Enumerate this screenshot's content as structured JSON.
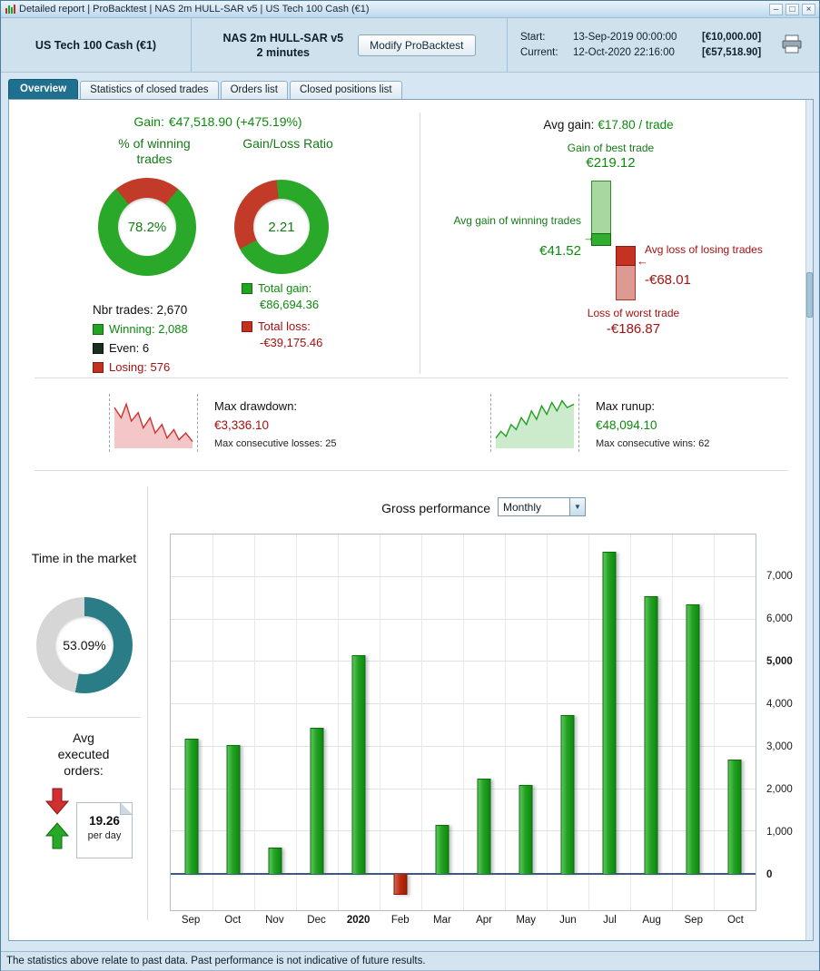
{
  "titlebar": {
    "title": "Detailed report | ProBacktest | NAS 2m HULL-SAR v5 | US Tech 100 Cash (€1)",
    "minimize_glyph": "–",
    "maximize_glyph": "□",
    "close_glyph": "×"
  },
  "header": {
    "instrument": "US Tech 100 Cash (€1)",
    "strategy": "NAS 2m HULL-SAR v5",
    "timeframe": "2 minutes",
    "modify_button": "Modify ProBacktest",
    "start_label": "Start:",
    "start_datetime": "13-Sep-2019 00:00:00",
    "start_equity": "[€10,000.00]",
    "current_label": "Current:",
    "current_datetime": "12-Oct-2020 22:16:00",
    "current_equity": "[€57,518.90]"
  },
  "tabs": [
    {
      "label": "Overview",
      "active": true
    },
    {
      "label": "Statistics of closed trades",
      "active": false
    },
    {
      "label": "Orders list",
      "active": false
    },
    {
      "label": "Closed positions list",
      "active": false
    }
  ],
  "overview": {
    "gain_label": "Gain:",
    "gain_value": "€47,518.90 (+475.19%)",
    "winning_pct": {
      "title": "% of winning trades",
      "value": "78.2%",
      "pct": 78.2
    },
    "gain_loss_ratio": {
      "title": "Gain/Loss Ratio",
      "value": "2.21",
      "ratio": 2.21
    },
    "nbr_trades": "Nbr trades: 2,670",
    "legend": [
      {
        "label": "Winning: 2,088",
        "color": "#23a223"
      },
      {
        "label": "Even: 6",
        "color": "#1e2e1e"
      },
      {
        "label": "Losing: 576",
        "color": "#c23020"
      }
    ],
    "total_gain_label": "Total gain:",
    "total_gain_value": "€86,694.36",
    "total_loss_label": "Total loss:",
    "total_loss_value": "-€39,175.46",
    "avg_gain_label": "Avg gain:",
    "avg_gain_value": "€17.80 / trade",
    "best_trade_label": "Gain of best trade",
    "best_trade_value": "€219.12",
    "avg_win_label": "Avg gain of winning trades",
    "avg_win_value": "€41.52",
    "avg_loss_label": "Avg loss of losing trades",
    "avg_loss_value": "-€68.01",
    "worst_trade_label": "Loss of worst trade",
    "worst_trade_value": "-€186.87",
    "drawdown": {
      "label": "Max drawdown:",
      "value": "€3,336.10",
      "sub": "Max consecutive losses: 25"
    },
    "runup": {
      "label": "Max runup:",
      "value": "€48,094.10",
      "sub": "Max consecutive wins: 62"
    },
    "time_in_market": {
      "title": "Time in the market",
      "value": "53.09%",
      "pct": 53.09
    },
    "avg_orders": {
      "title": "Avg executed orders:",
      "value": "19.26",
      "unit": "per day"
    },
    "gross_label": "Gross performance",
    "period_selected": "Monthly",
    "dropdown_arrow": "▼"
  },
  "chart_data": {
    "type": "bar",
    "title": "Gross performance",
    "period": "Monthly",
    "categories": [
      "Sep",
      "Oct",
      "Nov",
      "Dec",
      "2020",
      "Feb",
      "Mar",
      "Apr",
      "May",
      "Jun",
      "Jul",
      "Aug",
      "Sep",
      "Oct"
    ],
    "values": [
      3200,
      3050,
      620,
      3450,
      5150,
      -480,
      1150,
      2250,
      2100,
      3750,
      7600,
      6550,
      6350,
      2700
    ],
    "ylim": [
      -850,
      8000
    ],
    "yticks": [
      7000,
      6000,
      5000,
      4000,
      3000,
      2000,
      1000,
      0
    ],
    "bold_ticks": [
      5000,
      0
    ],
    "bold_categories": [
      "2020"
    ],
    "grid": true,
    "ylabel_side": "right",
    "bar_color_positive": "#23a223",
    "bar_color_negative": "#bc2a10"
  },
  "statusbar": "The statistics above relate to past data. Past performance is not indicative of future results.",
  "colors": {
    "green": "#0d8a0d",
    "red": "#a81010",
    "teal": "#2a7d86",
    "gray_remainder": "#d6d6d6"
  }
}
